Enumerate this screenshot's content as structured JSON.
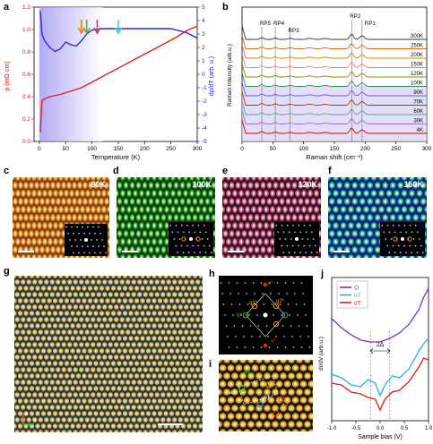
{
  "panels": {
    "a": {
      "letter": "a",
      "ylabel_left": "ρ (mΩ·cm)",
      "ylabel_right": "dρ/dT (arb. u.)",
      "xlabel": "Temperature (K)",
      "x_ticks": [
        "0",
        "50",
        "100",
        "150",
        "200",
        "250",
        "300"
      ],
      "y_left_ticks": [
        "0.0",
        "0.2",
        "0.4",
        "0.6",
        "0.8",
        "1.0",
        "1.2"
      ],
      "y_right_ticks": [
        "5",
        "4",
        "3",
        "2",
        "1",
        "0",
        "-1",
        "-2",
        "-3",
        "-4",
        "-5"
      ],
      "arrow_colors": [
        "#e87d27",
        "#6aa84f",
        "#a64d79",
        "#3fd6c8"
      ]
    },
    "b": {
      "letter": "b",
      "ylabel": "Raman Intensity (arb.u.)",
      "xlabel": "Raman shift (cm⁻¹)",
      "x_ticks": [
        "0",
        "50",
        "100",
        "150",
        "200",
        "250",
        "300"
      ],
      "peak_labels": [
        "RP5",
        "RP4",
        "RP3",
        "RP2",
        "RP1"
      ],
      "temps": [
        "300K",
        "250K",
        "200K",
        "150K",
        "120K",
        "100K",
        "90K",
        "70K",
        "60K",
        "30K",
        "4K"
      ],
      "temp_colors": [
        "#333333",
        "#d2691e",
        "#c8860a",
        "#f08080",
        "#8b8b00",
        "#2e8b57",
        "#6a5acd",
        "#8b4513",
        "#5f9ea0",
        "#9370db",
        "#cc0000"
      ]
    },
    "c": {
      "letter": "c",
      "temp": "80K"
    },
    "d": {
      "letter": "d",
      "temp": "100K"
    },
    "e": {
      "letter": "e",
      "temp": "120K"
    },
    "f": {
      "letter": "f",
      "temp": "150K"
    },
    "g": {
      "letter": "g",
      "axis_a": "a",
      "axis_b": "b"
    },
    "h": {
      "letter": "h",
      "labels": [
        "q*",
        "q1*",
        "q2*",
        "b*",
        "a*"
      ]
    },
    "i": {
      "letter": "i",
      "labels": [
        "a3",
        "a1",
        "b1",
        "a2"
      ]
    },
    "j": {
      "letter": "j",
      "ylabel": "dI/dV (arb.u.)",
      "xlabel": "Sample bias (V)",
      "x_ticks": [
        "-1.0",
        "-0.5",
        "0.0",
        "0.5",
        "1.0"
      ],
      "gap_label": "2Δ",
      "legend": [
        {
          "name": "O",
          "color": "#7b2fd1"
        },
        {
          "name": "uT",
          "color": "#22b5d6"
        },
        {
          "name": "dT",
          "color": "#d11f1f"
        }
      ]
    }
  },
  "chart_data": [
    {
      "type": "line",
      "panel": "a",
      "xlabel": "Temperature (K)",
      "ylabel": "ρ (mΩ·cm)",
      "ylabel_right": "dρ/dT (arb. u.)",
      "xlim": [
        -10,
        300
      ],
      "ylim": [
        0,
        1.2
      ],
      "ylim_right": [
        -5,
        5
      ],
      "series": [
        {
          "color": "#e32020",
          "axis": "left",
          "x": [
            2,
            5,
            10,
            20,
            40,
            60,
            80,
            100,
            120,
            140,
            160,
            180,
            200,
            220,
            240,
            260,
            280,
            300
          ],
          "y": [
            0.08,
            0.36,
            0.38,
            0.4,
            0.42,
            0.45,
            0.48,
            0.53,
            0.58,
            0.63,
            0.68,
            0.73,
            0.78,
            0.83,
            0.88,
            0.93,
            0.99,
            1.03
          ]
        },
        {
          "color": "#2b2bd6",
          "axis": "right",
          "x": [
            2,
            5,
            10,
            20,
            30,
            40,
            50,
            60,
            70,
            80,
            90,
            100,
            120,
            150,
            200,
            250,
            280,
            300
          ],
          "y": [
            4.7,
            3.0,
            2.5,
            2.0,
            1.7,
            1.9,
            2.4,
            2.2,
            2.1,
            2.5,
            3.0,
            3.3,
            3.4,
            3.4,
            3.4,
            3.4,
            3.1,
            2.7
          ]
        }
      ]
    },
    {
      "type": "line",
      "panel": "b",
      "xlabel": "Raman shift (cm⁻¹)",
      "ylabel": "Raman Intensity (arb.u.)",
      "xlim": [
        0,
        300
      ],
      "peaks_cm": [
        32,
        54,
        78,
        178,
        195
      ]
    },
    {
      "type": "line",
      "panel": "j",
      "xlabel": "Sample bias (V)",
      "ylabel": "dI/dV (arb.u.)",
      "xlim": [
        -1.0,
        1.0
      ],
      "series": [
        {
          "name": "O",
          "color": "#7b2fd1",
          "x": [
            -1.0,
            -0.8,
            -0.6,
            -0.4,
            -0.2,
            0.0,
            0.2,
            0.4,
            0.6,
            0.8,
            0.9,
            1.0
          ],
          "y": [
            5.7,
            5.2,
            4.8,
            4.5,
            4.4,
            4.4,
            4.6,
            4.9,
            5.4,
            6.2,
            6.9,
            7.4
          ]
        },
        {
          "name": "uT",
          "color": "#22b5d6",
          "x": [
            -1.0,
            -0.8,
            -0.6,
            -0.4,
            -0.25,
            -0.1,
            0.0,
            0.1,
            0.25,
            0.4,
            0.6,
            0.8,
            0.9,
            1.0
          ],
          "y": [
            2.6,
            2.4,
            2.0,
            1.9,
            2.3,
            2.1,
            1.4,
            2.0,
            2.5,
            2.4,
            2.9,
            3.9,
            4.3,
            4.6
          ]
        },
        {
          "name": "dT",
          "color": "#d11f1f",
          "x": [
            -1.0,
            -0.8,
            -0.6,
            -0.4,
            -0.25,
            -0.1,
            0.0,
            0.1,
            0.25,
            0.4,
            0.6,
            0.8,
            0.9,
            1.0
          ],
          "y": [
            2.1,
            2.0,
            1.6,
            1.5,
            1.3,
            1.2,
            0.6,
            1.2,
            1.6,
            1.7,
            2.2,
            3.0,
            3.5,
            3.4
          ]
        }
      ]
    }
  ]
}
